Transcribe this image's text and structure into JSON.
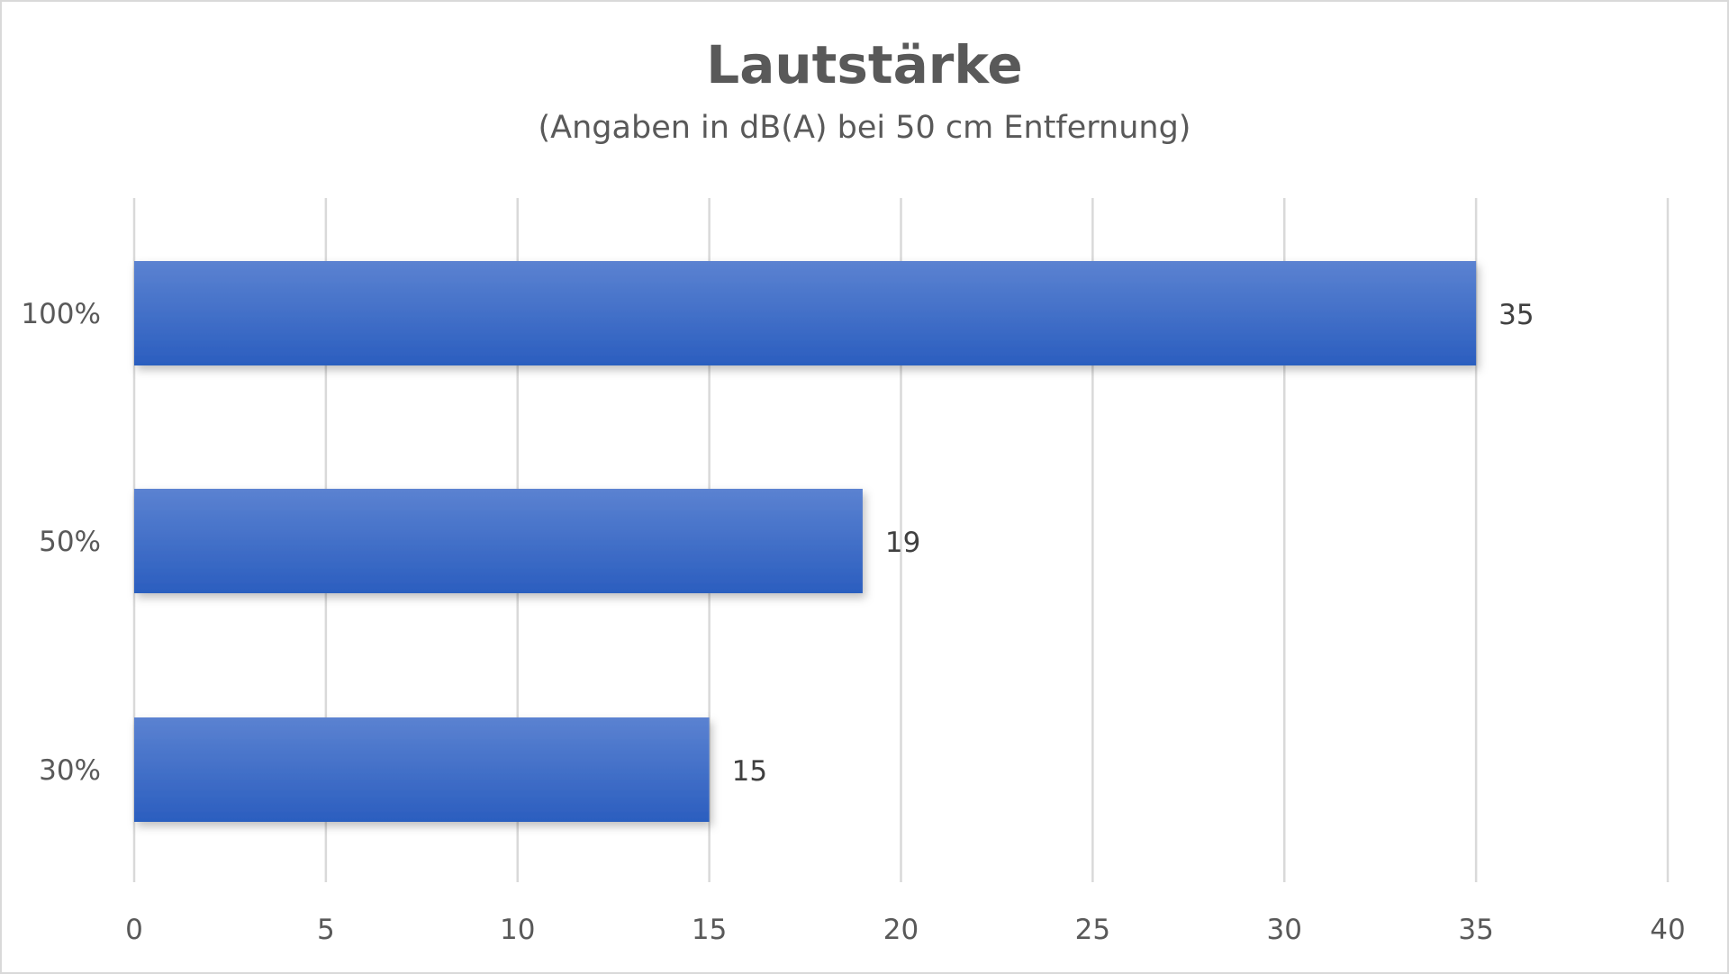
{
  "chart_data": {
    "type": "bar",
    "orientation": "horizontal",
    "title": "Lautstärke",
    "subtitle": "(Angaben in dB(A) bei 50 cm Entfernung)",
    "categories": [
      "100%",
      "50%",
      "30%"
    ],
    "values": [
      35,
      19,
      15
    ],
    "xlim": [
      0,
      40
    ],
    "x_ticks": [
      "0",
      "5",
      "10",
      "15",
      "20",
      "25",
      "30",
      "35",
      "40"
    ],
    "grid": "vertical",
    "bar_color_top": "#5b82d1",
    "bar_color_bottom": "#2b5ebf",
    "data_labels": true
  }
}
